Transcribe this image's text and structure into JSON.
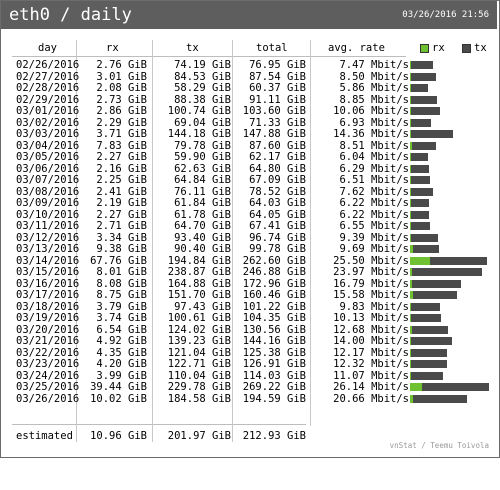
{
  "title": "eth0 / daily",
  "timestamp": "03/26/2016 21:56",
  "columns": {
    "day": "day",
    "rx": "rx",
    "tx": "tx",
    "total": "total",
    "avg": "avg. rate"
  },
  "legend": {
    "rx": "rx",
    "tx": "tx"
  },
  "colors": {
    "rx": "#70c131",
    "tx": "#4a4a4a",
    "titlebar": "#5e5e5e"
  },
  "rows": [
    {
      "day": "02/26/2016",
      "rx": "2.76 GiB",
      "tx": "74.19 GiB",
      "total": "76.95 GiB",
      "avg": "7.47 Mbit/s",
      "rx_gib": 2.76,
      "tx_gib": 74.19
    },
    {
      "day": "02/27/2016",
      "rx": "3.01 GiB",
      "tx": "84.53 GiB",
      "total": "87.54 GiB",
      "avg": "8.50 Mbit/s",
      "rx_gib": 3.01,
      "tx_gib": 84.53
    },
    {
      "day": "02/28/2016",
      "rx": "2.08 GiB",
      "tx": "58.29 GiB",
      "total": "60.37 GiB",
      "avg": "5.86 Mbit/s",
      "rx_gib": 2.08,
      "tx_gib": 58.29
    },
    {
      "day": "02/29/2016",
      "rx": "2.73 GiB",
      "tx": "88.38 GiB",
      "total": "91.11 GiB",
      "avg": "8.85 Mbit/s",
      "rx_gib": 2.73,
      "tx_gib": 88.38
    },
    {
      "day": "03/01/2016",
      "rx": "2.86 GiB",
      "tx": "100.74 GiB",
      "total": "103.60 GiB",
      "avg": "10.06 Mbit/s",
      "rx_gib": 2.86,
      "tx_gib": 100.74
    },
    {
      "day": "03/02/2016",
      "rx": "2.29 GiB",
      "tx": "69.04 GiB",
      "total": "71.33 GiB",
      "avg": "6.93 Mbit/s",
      "rx_gib": 2.29,
      "tx_gib": 69.04
    },
    {
      "day": "03/03/2016",
      "rx": "3.71 GiB",
      "tx": "144.18 GiB",
      "total": "147.88 GiB",
      "avg": "14.36 Mbit/s",
      "rx_gib": 3.71,
      "tx_gib": 144.18
    },
    {
      "day": "03/04/2016",
      "rx": "7.83 GiB",
      "tx": "79.78 GiB",
      "total": "87.60 GiB",
      "avg": "8.51 Mbit/s",
      "rx_gib": 7.83,
      "tx_gib": 79.78
    },
    {
      "day": "03/05/2016",
      "rx": "2.27 GiB",
      "tx": "59.90 GiB",
      "total": "62.17 GiB",
      "avg": "6.04 Mbit/s",
      "rx_gib": 2.27,
      "tx_gib": 59.9
    },
    {
      "day": "03/06/2016",
      "rx": "2.16 GiB",
      "tx": "62.63 GiB",
      "total": "64.80 GiB",
      "avg": "6.29 Mbit/s",
      "rx_gib": 2.16,
      "tx_gib": 62.63
    },
    {
      "day": "03/07/2016",
      "rx": "2.25 GiB",
      "tx": "64.84 GiB",
      "total": "67.09 GiB",
      "avg": "6.51 Mbit/s",
      "rx_gib": 2.25,
      "tx_gib": 64.84
    },
    {
      "day": "03/08/2016",
      "rx": "2.41 GiB",
      "tx": "76.11 GiB",
      "total": "78.52 GiB",
      "avg": "7.62 Mbit/s",
      "rx_gib": 2.41,
      "tx_gib": 76.11
    },
    {
      "day": "03/09/2016",
      "rx": "2.19 GiB",
      "tx": "61.84 GiB",
      "total": "64.03 GiB",
      "avg": "6.22 Mbit/s",
      "rx_gib": 2.19,
      "tx_gib": 61.84
    },
    {
      "day": "03/10/2016",
      "rx": "2.27 GiB",
      "tx": "61.78 GiB",
      "total": "64.05 GiB",
      "avg": "6.22 Mbit/s",
      "rx_gib": 2.27,
      "tx_gib": 61.78
    },
    {
      "day": "03/11/2016",
      "rx": "2.71 GiB",
      "tx": "64.70 GiB",
      "total": "67.41 GiB",
      "avg": "6.55 Mbit/s",
      "rx_gib": 2.71,
      "tx_gib": 64.7
    },
    {
      "day": "03/12/2016",
      "rx": "3.34 GiB",
      "tx": "93.40 GiB",
      "total": "96.74 GiB",
      "avg": "9.39 Mbit/s",
      "rx_gib": 3.34,
      "tx_gib": 93.4
    },
    {
      "day": "03/13/2016",
      "rx": "9.38 GiB",
      "tx": "90.40 GiB",
      "total": "99.78 GiB",
      "avg": "9.69 Mbit/s",
      "rx_gib": 9.38,
      "tx_gib": 90.4
    },
    {
      "day": "03/14/2016",
      "rx": "67.76 GiB",
      "tx": "194.84 GiB",
      "total": "262.60 GiB",
      "avg": "25.50 Mbit/s",
      "rx_gib": 67.76,
      "tx_gib": 194.84
    },
    {
      "day": "03/15/2016",
      "rx": "8.01 GiB",
      "tx": "238.87 GiB",
      "total": "246.88 GiB",
      "avg": "23.97 Mbit/s",
      "rx_gib": 8.01,
      "tx_gib": 238.87
    },
    {
      "day": "03/16/2016",
      "rx": "8.08 GiB",
      "tx": "164.88 GiB",
      "total": "172.96 GiB",
      "avg": "16.79 Mbit/s",
      "rx_gib": 8.08,
      "tx_gib": 164.88
    },
    {
      "day": "03/17/2016",
      "rx": "8.75 GiB",
      "tx": "151.70 GiB",
      "total": "160.46 GiB",
      "avg": "15.58 Mbit/s",
      "rx_gib": 8.75,
      "tx_gib": 151.7
    },
    {
      "day": "03/18/2016",
      "rx": "3.79 GiB",
      "tx": "97.43 GiB",
      "total": "101.22 GiB",
      "avg": "9.83 Mbit/s",
      "rx_gib": 3.79,
      "tx_gib": 97.43
    },
    {
      "day": "03/19/2016",
      "rx": "3.74 GiB",
      "tx": "100.61 GiB",
      "total": "104.35 GiB",
      "avg": "10.13 Mbit/s",
      "rx_gib": 3.74,
      "tx_gib": 100.61
    },
    {
      "day": "03/20/2016",
      "rx": "6.54 GiB",
      "tx": "124.02 GiB",
      "total": "130.56 GiB",
      "avg": "12.68 Mbit/s",
      "rx_gib": 6.54,
      "tx_gib": 124.02
    },
    {
      "day": "03/21/2016",
      "rx": "4.92 GiB",
      "tx": "139.23 GiB",
      "total": "144.16 GiB",
      "avg": "14.00 Mbit/s",
      "rx_gib": 4.92,
      "tx_gib": 139.23
    },
    {
      "day": "03/22/2016",
      "rx": "4.35 GiB",
      "tx": "121.04 GiB",
      "total": "125.38 GiB",
      "avg": "12.17 Mbit/s",
      "rx_gib": 4.35,
      "tx_gib": 121.04
    },
    {
      "day": "03/23/2016",
      "rx": "4.20 GiB",
      "tx": "122.71 GiB",
      "total": "126.91 GiB",
      "avg": "12.32 Mbit/s",
      "rx_gib": 4.2,
      "tx_gib": 122.71
    },
    {
      "day": "03/24/2016",
      "rx": "3.99 GiB",
      "tx": "110.04 GiB",
      "total": "114.03 GiB",
      "avg": "11.07 Mbit/s",
      "rx_gib": 3.99,
      "tx_gib": 110.04
    },
    {
      "day": "03/25/2016",
      "rx": "39.44 GiB",
      "tx": "229.78 GiB",
      "total": "269.22 GiB",
      "avg": "26.14 Mbit/s",
      "rx_gib": 39.44,
      "tx_gib": 229.78
    },
    {
      "day": "03/26/2016",
      "rx": "10.02 GiB",
      "tx": "184.58 GiB",
      "total": "194.59 GiB",
      "avg": "20.66 Mbit/s",
      "rx_gib": 10.02,
      "tx_gib": 184.58
    }
  ],
  "estimated": {
    "label": "estimated",
    "rx": "10.96 GiB",
    "tx": "201.97 GiB",
    "total": "212.93 GiB"
  },
  "footer": "vnStat / Teemu Toivola"
}
